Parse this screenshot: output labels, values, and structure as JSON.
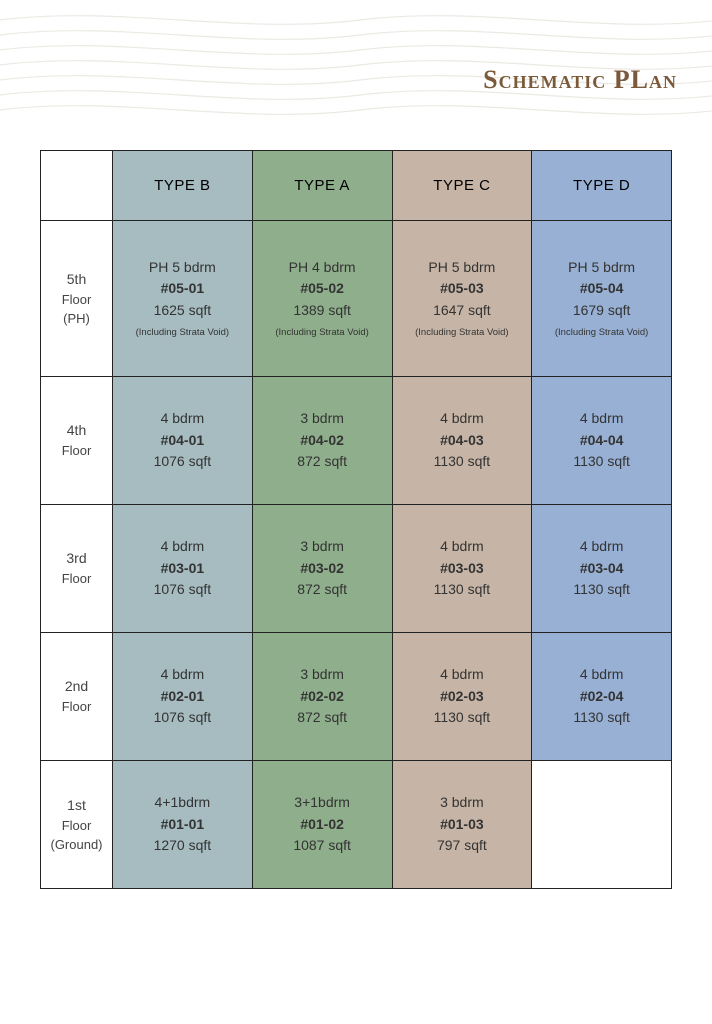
{
  "title": {
    "text": "Schematic PLan",
    "color": "#7a5a3a"
  },
  "columns": [
    {
      "label": "TYPE B",
      "color": "#a6bcc1"
    },
    {
      "label": "TYPE A",
      "color": "#8fae8b"
    },
    {
      "label": "TYPE C",
      "color": "#c6b5a6"
    },
    {
      "label": "TYPE D",
      "color": "#98b0d3"
    }
  ],
  "strata_note": "(Including Strata Void)",
  "rows": [
    {
      "label_main": "5th",
      "label_sub1": "Floor",
      "label_sub2": "(PH)",
      "ph": true,
      "cells": [
        {
          "type": "PH 5 bdrm",
          "num": "#05-01",
          "area": "1625 sqft",
          "note": true
        },
        {
          "type": "PH 4 bdrm",
          "num": "#05-02",
          "area": "1389 sqft",
          "note": true
        },
        {
          "type": "PH 5 bdrm",
          "num": "#05-03",
          "area": "1647 sqft",
          "note": true
        },
        {
          "type": "PH 5 bdrm",
          "num": "#05-04",
          "area": "1679 sqft",
          "note": true
        }
      ]
    },
    {
      "label_main": "4th",
      "label_sub1": "Floor",
      "label_sub2": "",
      "ph": false,
      "cells": [
        {
          "type": "4 bdrm",
          "num": "#04-01",
          "area": "1076 sqft"
        },
        {
          "type": "3 bdrm",
          "num": "#04-02",
          "area": "872 sqft"
        },
        {
          "type": "4 bdrm",
          "num": "#04-03",
          "area": "1130 sqft"
        },
        {
          "type": "4 bdrm",
          "num": "#04-04",
          "area": "1130 sqft"
        }
      ]
    },
    {
      "label_main": "3rd",
      "label_sub1": "Floor",
      "label_sub2": "",
      "ph": false,
      "cells": [
        {
          "type": "4 bdrm",
          "num": "#03-01",
          "area": "1076 sqft"
        },
        {
          "type": "3 bdrm",
          "num": "#03-02",
          "area": "872 sqft"
        },
        {
          "type": "4 bdrm",
          "num": "#03-03",
          "area": "1130 sqft"
        },
        {
          "type": "4 bdrm",
          "num": "#03-04",
          "area": "1130 sqft"
        }
      ]
    },
    {
      "label_main": "2nd",
      "label_sub1": "Floor",
      "label_sub2": "",
      "ph": false,
      "cells": [
        {
          "type": "4 bdrm",
          "num": "#02-01",
          "area": "1076 sqft"
        },
        {
          "type": "3 bdrm",
          "num": "#02-02",
          "area": "872 sqft"
        },
        {
          "type": "4 bdrm",
          "num": "#02-03",
          "area": "1130 sqft"
        },
        {
          "type": "4 bdrm",
          "num": "#02-04",
          "area": "1130 sqft"
        }
      ]
    },
    {
      "label_main": "1st",
      "label_sub1": "Floor",
      "label_sub2": "(Ground)",
      "ph": false,
      "cells": [
        {
          "type": "4+1bdrm",
          "num": "#01-01",
          "area": "1270 sqft"
        },
        {
          "type": "3+1bdrm",
          "num": "#01-02",
          "area": "1087 sqft"
        },
        {
          "type": "3 bdrm",
          "num": "#01-03",
          "area": "797 sqft"
        },
        {
          "empty": true
        }
      ]
    }
  ]
}
